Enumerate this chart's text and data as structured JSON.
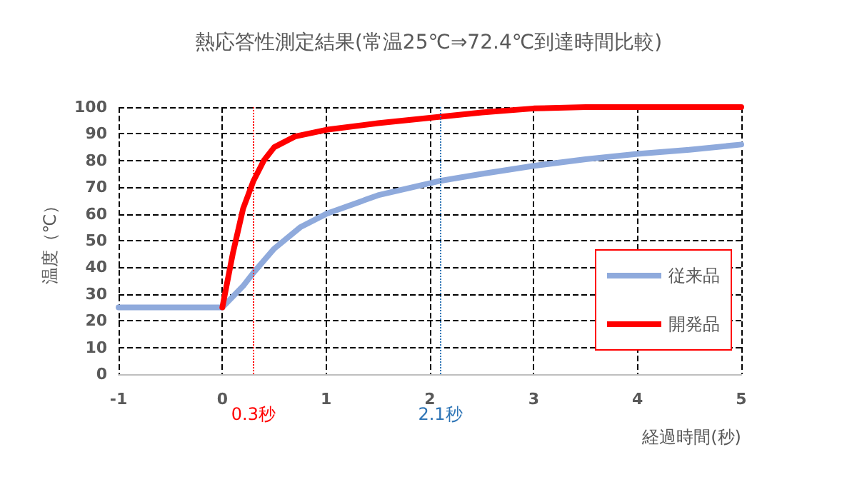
{
  "chart_data": {
    "type": "line",
    "title": "熱応答性測定結果(常温25℃⇒72.4℃到達時間比較)",
    "xlabel": "経過時間(秒)",
    "ylabel": "温度（℃）",
    "xlim": [
      -1,
      5
    ],
    "xticks": [
      -1,
      0,
      1,
      2,
      3,
      4,
      5
    ],
    "ylim": [
      0,
      100
    ],
    "yticks": [
      0,
      10,
      20,
      30,
      40,
      50,
      60,
      70,
      80,
      90,
      100
    ],
    "grid": true,
    "legend": "bottom right",
    "marker": "none",
    "line_style": "solid",
    "series": [
      {
        "name": "従来品",
        "color": "#8faadc",
        "x": [
          -1,
          0,
          0.2,
          0.3,
          0.5,
          0.75,
          1,
          1.5,
          2,
          2.1,
          2.5,
          3,
          3.5,
          4,
          4.5,
          5
        ],
        "values": [
          25,
          25,
          33,
          38,
          47,
          55,
          60,
          67,
          71.5,
          72.4,
          75,
          78,
          80.5,
          82.5,
          84,
          86
        ]
      },
      {
        "name": "開発品",
        "color": "#ff0000",
        "x": [
          0,
          0.1,
          0.2,
          0.3,
          0.4,
          0.5,
          0.7,
          1,
          1.5,
          2,
          2.5,
          3,
          3.5,
          4,
          5
        ],
        "values": [
          25,
          45,
          62,
          72.4,
          80,
          85,
          89,
          91.5,
          94,
          96,
          98,
          99.5,
          100,
          100,
          100
        ]
      }
    ],
    "ref_lines": [
      {
        "axis": "x",
        "value": 0.3,
        "label": "0.3秒",
        "color": "#ff0000",
        "line_style": "dotted"
      },
      {
        "axis": "x",
        "value": 2.1,
        "label": "2.1秒",
        "color": "#2e75b6",
        "line_style": "dotted"
      }
    ]
  }
}
